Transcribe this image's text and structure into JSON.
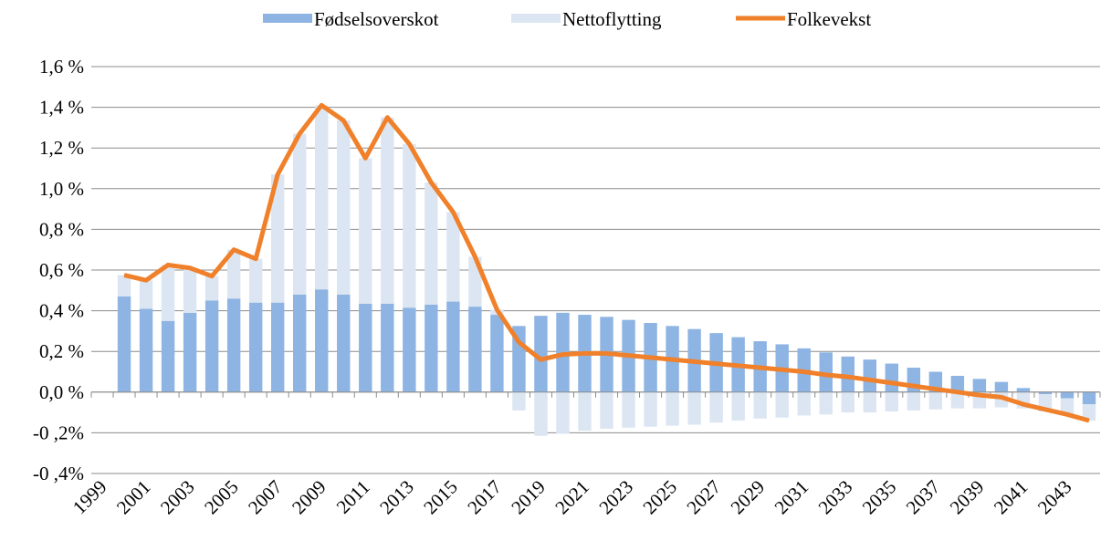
{
  "chart_data": {
    "type": "bar-line",
    "categories": [
      "1999",
      null,
      "2001",
      null,
      "2003",
      null,
      "2005",
      null,
      "2007",
      null,
      "2009",
      null,
      "2011",
      null,
      "2013",
      null,
      "2015",
      null,
      "2017",
      null,
      "2019",
      null,
      "2021",
      null,
      "2023",
      null,
      "2025",
      null,
      "2027",
      null,
      "2029",
      null,
      "2031",
      null,
      "2033",
      null,
      "2035",
      null,
      "2037",
      null,
      "2039",
      null,
      "2041",
      null,
      "2043",
      null
    ],
    "series": [
      {
        "name": "Fødselsoverskot",
        "type": "bar",
        "color": "#8db4e2",
        "values": [
          null,
          0.47,
          0.41,
          0.35,
          0.39,
          0.45,
          0.46,
          0.44,
          0.44,
          0.48,
          0.505,
          0.48,
          0.435,
          0.435,
          0.415,
          0.43,
          0.445,
          0.42,
          0.38,
          0.325,
          0.375,
          0.39,
          0.38,
          0.37,
          0.355,
          0.34,
          0.325,
          0.31,
          0.29,
          0.27,
          0.25,
          0.235,
          0.215,
          0.195,
          0.175,
          0.16,
          0.14,
          0.12,
          0.1,
          0.08,
          0.065,
          0.05,
          0.02,
          -0.01,
          -0.03,
          -0.06
        ]
      },
      {
        "name": "Nettoflytting",
        "type": "bar",
        "color": "#dce6f2",
        "values": [
          null,
          0.105,
          0.14,
          0.275,
          0.22,
          0.12,
          0.24,
          0.215,
          0.63,
          0.79,
          0.905,
          0.855,
          0.715,
          0.915,
          0.805,
          0.6,
          0.44,
          0.245,
          0.025,
          -0.09,
          -0.215,
          -0.205,
          -0.19,
          -0.18,
          -0.175,
          -0.17,
          -0.165,
          -0.16,
          -0.15,
          -0.14,
          -0.13,
          -0.125,
          -0.115,
          -0.11,
          -0.1,
          -0.1,
          -0.095,
          -0.09,
          -0.085,
          -0.08,
          -0.08,
          -0.075,
          -0.08,
          -0.085,
          -0.08,
          -0.08
        ]
      },
      {
        "name": "Folkevekst",
        "type": "line",
        "color": "#f0802a",
        "values": [
          null,
          0.575,
          0.55,
          0.625,
          0.61,
          0.57,
          0.7,
          0.655,
          1.07,
          1.27,
          1.41,
          1.335,
          1.15,
          1.35,
          1.22,
          1.03,
          0.885,
          0.665,
          0.405,
          0.245,
          0.16,
          0.185,
          0.19,
          0.19,
          0.18,
          0.17,
          0.16,
          0.15,
          0.14,
          0.13,
          0.12,
          0.11,
          0.1,
          0.085,
          0.075,
          0.06,
          0.045,
          0.03,
          0.015,
          0.0,
          -0.015,
          -0.025,
          -0.06,
          -0.085,
          -0.11,
          -0.14
        ]
      }
    ],
    "ylim": [
      -0.4,
      1.6
    ],
    "yticks": [
      {
        "value": -0.4,
        "label": "-0 ,4%"
      },
      {
        "value": -0.2,
        "label": "-0 ,2%"
      },
      {
        "value": 0,
        "label": "0,0 %"
      },
      {
        "value": 0.2,
        "label": "0,2 %"
      },
      {
        "value": 0.4,
        "label": "0,4 %"
      },
      {
        "value": 0.6,
        "label": "0,6 %"
      },
      {
        "value": 0.8,
        "label": "0,8 %"
      },
      {
        "value": 1.0,
        "label": "1,0 %"
      },
      {
        "value": 1.2,
        "label": "1,2 %"
      },
      {
        "value": 1.4,
        "label": "1,4 %"
      },
      {
        "value": 1.6,
        "label": "1,6 %"
      }
    ],
    "grid": true,
    "negative_tick_color": "#ff0000",
    "legend": "top"
  }
}
